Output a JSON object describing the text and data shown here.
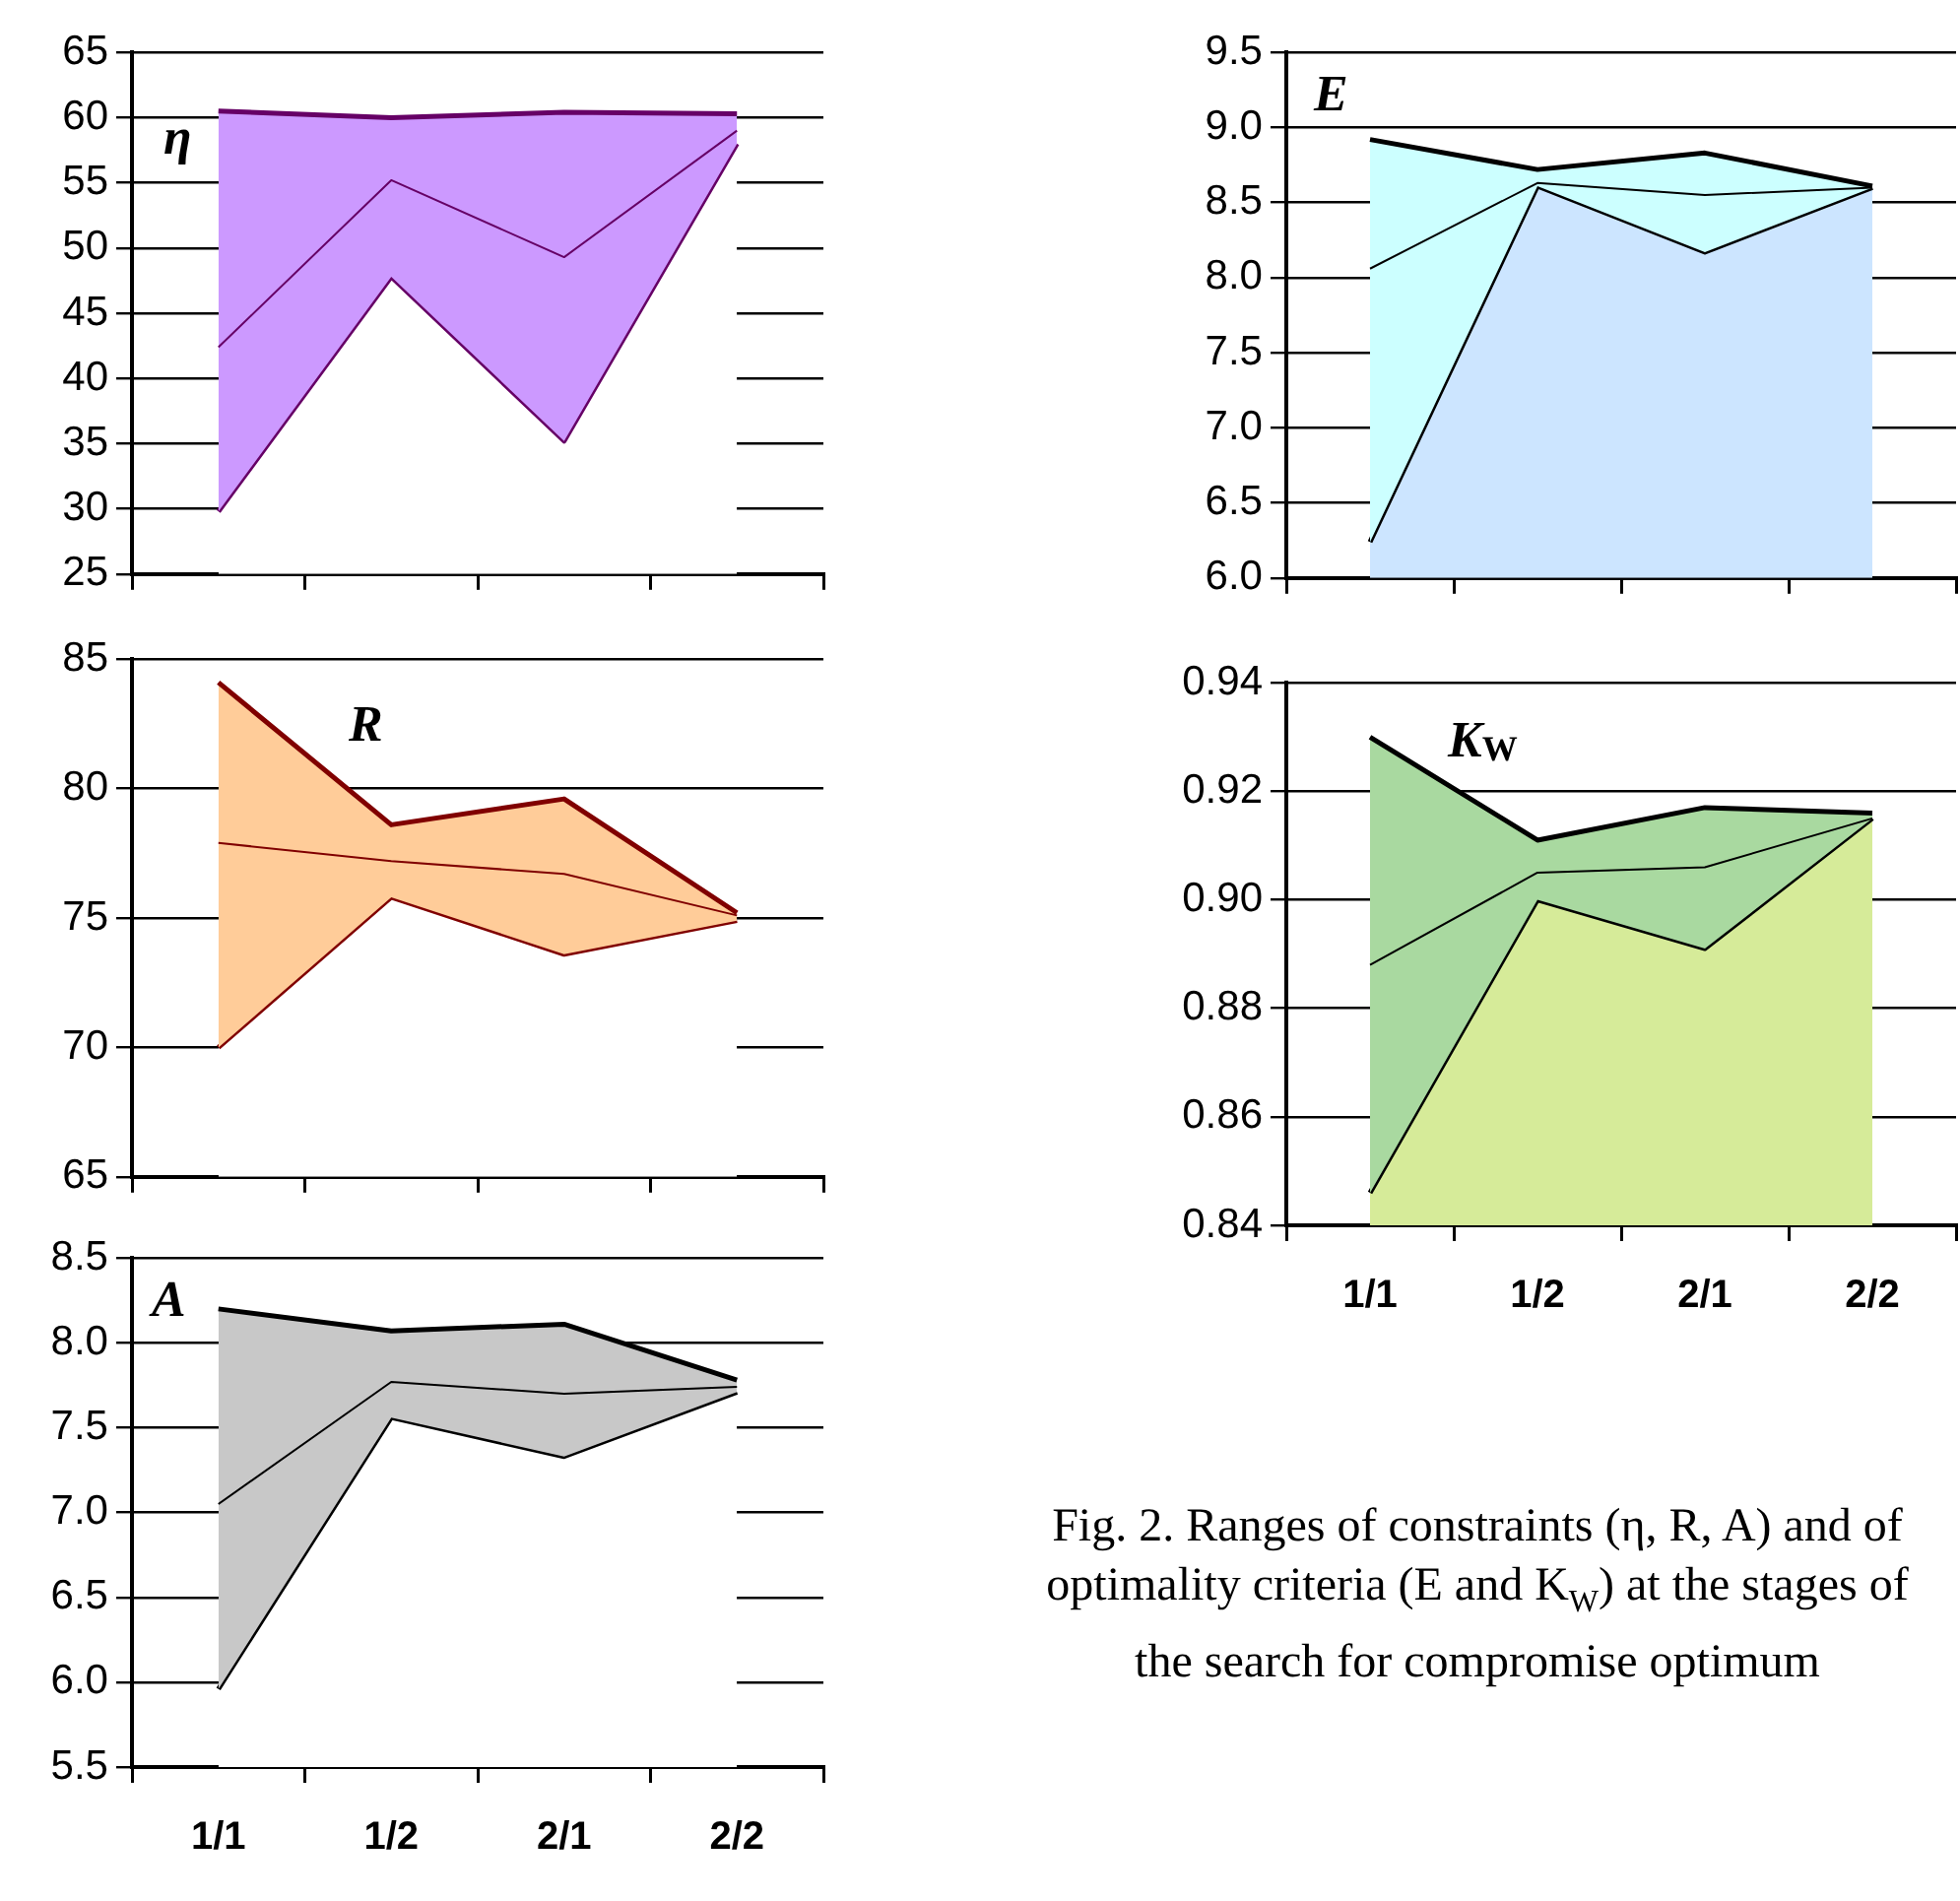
{
  "chart_data": [
    {
      "type": "area",
      "title": "η",
      "categories": [
        null,
        null,
        null,
        null
      ],
      "series": [
        {
          "type": "area",
          "color": "#ffffff",
          "values": [
            29.8,
            47.8,
            35.2,
            58.0
          ]
        },
        {
          "type": "area",
          "color": "#cc99ff",
          "values": [
            60.5,
            60.0,
            60.4,
            60.3
          ]
        },
        {
          "type": "line",
          "color": "#660066",
          "values": [
            42.4,
            55.2,
            49.3,
            59.0
          ]
        }
      ],
      "ylim": [
        25,
        65
      ],
      "yticks": [
        25,
        30,
        35,
        40,
        45,
        50,
        55,
        60,
        65
      ],
      "grid": "y",
      "marker": "none",
      "tick_labels": "y"
    },
    {
      "type": "area",
      "title": "R",
      "categories": [
        null,
        null,
        null,
        null
      ],
      "series": [
        {
          "type": "area",
          "color": "#ffffff",
          "values": [
            70.0,
            75.8,
            73.6,
            74.9
          ]
        },
        {
          "type": "area",
          "color": "#ffcc99",
          "values": [
            84.1,
            78.6,
            79.6,
            75.2
          ]
        },
        {
          "type": "line",
          "color": "#800000",
          "values": [
            77.9,
            77.2,
            76.7,
            75.1
          ]
        }
      ],
      "ylim": [
        65,
        85
      ],
      "yticks": [
        65,
        70,
        75,
        80,
        85
      ],
      "grid": "y",
      "marker": "none",
      "tick_labels": "y"
    },
    {
      "type": "area",
      "title": "A",
      "categories": [
        "1/1",
        "1/2",
        "2/1",
        "2/2"
      ],
      "series": [
        {
          "type": "area",
          "color": "#ffffff",
          "values": [
            5.96,
            7.56,
            7.33,
            7.71
          ]
        },
        {
          "type": "area",
          "color": "#c8c8c8",
          "values": [
            8.2,
            8.07,
            8.11,
            7.78
          ]
        },
        {
          "type": "line",
          "color": "#000000",
          "values": [
            7.05,
            7.77,
            7.7,
            7.74
          ]
        }
      ],
      "ylim": [
        5.5,
        8.5
      ],
      "yticks": [
        5.5,
        {
          "value": 6,
          "label": "6.0"
        },
        6.5,
        {
          "value": 7,
          "label": "7.0"
        },
        7.5,
        {
          "value": 8,
          "label": "8.0"
        },
        8.5
      ],
      "grid": "y",
      "marker": "none"
    },
    {
      "type": "area",
      "title": "E",
      "categories": [
        null,
        null,
        null,
        null
      ],
      "series": [
        {
          "type": "area",
          "color": "#cce5ff",
          "values": [
            6.24,
            8.61,
            8.17,
            8.6
          ]
        },
        {
          "type": "area",
          "color": "#ccffff",
          "values": [
            8.92,
            8.72,
            8.83,
            8.61
          ]
        },
        {
          "type": "line",
          "color": "#000000",
          "values": [
            8.06,
            8.63,
            8.55,
            8.6
          ]
        }
      ],
      "ylim": [
        6.0,
        9.5
      ],
      "yticks": [
        {
          "value": 6,
          "label": "6.0"
        },
        6.5,
        {
          "value": 7,
          "label": "7.0"
        },
        7.5,
        {
          "value": 8,
          "label": "8.0"
        },
        8.5,
        {
          "value": 9,
          "label": "9.0"
        },
        9.5
      ],
      "grid": "y",
      "marker": "none",
      "tick_labels": "y"
    },
    {
      "type": "area",
      "title": "K$_{W}$",
      "categories": [
        "1/1",
        "1/2",
        "2/1",
        "2/2"
      ],
      "series": [
        {
          "type": "area",
          "color": "#d6eb99",
          "values": [
            0.846,
            0.9,
            0.891,
            0.915
          ]
        },
        {
          "type": "area",
          "color": "#a9d9a0",
          "values": [
            0.93,
            0.911,
            0.917,
            0.916
          ]
        },
        {
          "type": "line",
          "color": "#000000",
          "values": [
            0.888,
            0.905,
            0.906,
            0.915
          ]
        }
      ],
      "ylim": [
        0.84,
        0.94
      ],
      "yticks": [
        0.84,
        0.86,
        0.88,
        {
          "value": 0.9,
          "label": "0.90"
        },
        0.92,
        0.94
      ],
      "grid": "y",
      "marker": "none",
      "annotations": [
        "Fig. 2. Ranges of constraints (η, R, A) and of optimality criteria (E and K$_{W}$) at the stages of the search for compromise optimum"
      ]
    }
  ]
}
